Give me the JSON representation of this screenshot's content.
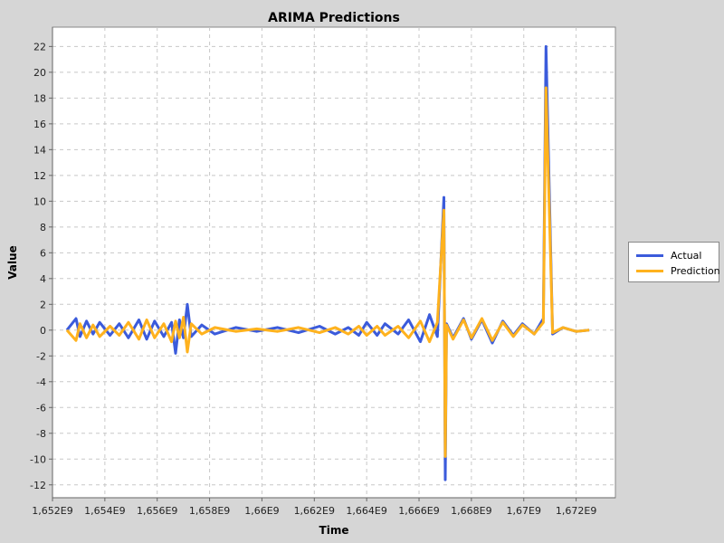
{
  "chart_data": {
    "type": "line",
    "title": "ARIMA Predictions",
    "xlabel": "Time",
    "ylabel": "Value",
    "xlim": [
      1652000000,
      1673500000
    ],
    "ylim": [
      -13,
      23.5
    ],
    "xticks": [
      1652000000,
      1654000000,
      1656000000,
      1658000000,
      1660000000,
      1662000000,
      1664000000,
      1666000000,
      1668000000,
      1670000000,
      1672000000
    ],
    "xtick_labels": [
      "1,652E9",
      "1,654E9",
      "1,656E9",
      "1,658E9",
      "1,66E9",
      "1,662E9",
      "1,664E9",
      "1,666E9",
      "1,668E9",
      "1,67E9",
      "1,672E9"
    ],
    "yticks": [
      -12,
      -10,
      -8,
      -6,
      -4,
      -2,
      0,
      2,
      4,
      6,
      8,
      10,
      12,
      14,
      16,
      18,
      20,
      22
    ],
    "grid": true,
    "legend": "right",
    "series": [
      {
        "name": "Actual",
        "color": "#3b5bdb",
        "x": [
          1652550000,
          1652900000,
          1653050000,
          1653300000,
          1653550000,
          1653800000,
          1654200000,
          1654550000,
          1654900000,
          1655300000,
          1655600000,
          1655900000,
          1656250000,
          1656550000,
          1656700000,
          1656850000,
          1657000000,
          1657150000,
          1657300000,
          1657700000,
          1658200000,
          1659000000,
          1659800000,
          1660600000,
          1661400000,
          1662200000,
          1662800000,
          1663300000,
          1663700000,
          1664000000,
          1664400000,
          1664700000,
          1665200000,
          1665600000,
          1666050000,
          1666400000,
          1666700000,
          1666950000,
          1667000000,
          1667050000,
          1667300000,
          1667700000,
          1668000000,
          1668400000,
          1668800000,
          1669200000,
          1669600000,
          1669950000,
          1670400000,
          1670750000,
          1670850000,
          1671100000,
          1671500000,
          1672000000,
          1672500000
        ],
        "values": [
          0,
          0.9,
          -0.5,
          0.7,
          -0.3,
          0.6,
          -0.4,
          0.5,
          -0.6,
          0.8,
          -0.7,
          0.7,
          -0.5,
          0.6,
          -1.8,
          0.8,
          -0.6,
          2.0,
          -0.5,
          0.4,
          -0.3,
          0.2,
          -0.1,
          0.2,
          -0.2,
          0.3,
          -0.3,
          0.2,
          -0.4,
          0.6,
          -0.4,
          0.5,
          -0.3,
          0.8,
          -0.9,
          1.2,
          -0.5,
          10.3,
          -11.6,
          0.5,
          -0.6,
          0.9,
          -0.7,
          0.8,
          -1.0,
          0.7,
          -0.4,
          0.5,
          -0.3,
          0.9,
          22.0,
          -0.3,
          0.2,
          -0.1,
          0
        ]
      },
      {
        "name": "Prediction",
        "color": "#ffb21e",
        "x": [
          1652550000,
          1652900000,
          1653050000,
          1653300000,
          1653550000,
          1653800000,
          1654200000,
          1654550000,
          1654900000,
          1655300000,
          1655600000,
          1655900000,
          1656250000,
          1656550000,
          1656700000,
          1656850000,
          1657000000,
          1657150000,
          1657300000,
          1657700000,
          1658200000,
          1659000000,
          1659800000,
          1660600000,
          1661400000,
          1662200000,
          1662800000,
          1663300000,
          1663700000,
          1664000000,
          1664400000,
          1664700000,
          1665200000,
          1665600000,
          1666050000,
          1666400000,
          1666700000,
          1666950000,
          1667000000,
          1667050000,
          1667300000,
          1667700000,
          1668000000,
          1668400000,
          1668800000,
          1669200000,
          1669600000,
          1669950000,
          1670400000,
          1670750000,
          1670850000,
          1671100000,
          1671500000,
          1672000000,
          1672500000
        ],
        "values": [
          0,
          -0.8,
          0.5,
          -0.6,
          0.4,
          -0.5,
          0.3,
          -0.4,
          0.6,
          -0.7,
          0.8,
          -0.6,
          0.5,
          -0.9,
          0.7,
          -0.6,
          1.0,
          -1.7,
          0.5,
          -0.3,
          0.2,
          -0.1,
          0.1,
          -0.1,
          0.2,
          -0.2,
          0.2,
          -0.3,
          0.3,
          -0.4,
          0.3,
          -0.4,
          0.3,
          -0.6,
          0.7,
          -0.9,
          0.6,
          9.3,
          -9.8,
          0.4,
          -0.7,
          0.8,
          -0.6,
          0.9,
          -0.8,
          0.6,
          -0.5,
          0.4,
          -0.3,
          0.6,
          18.8,
          -0.2,
          0.2,
          -0.1,
          0
        ]
      }
    ]
  }
}
